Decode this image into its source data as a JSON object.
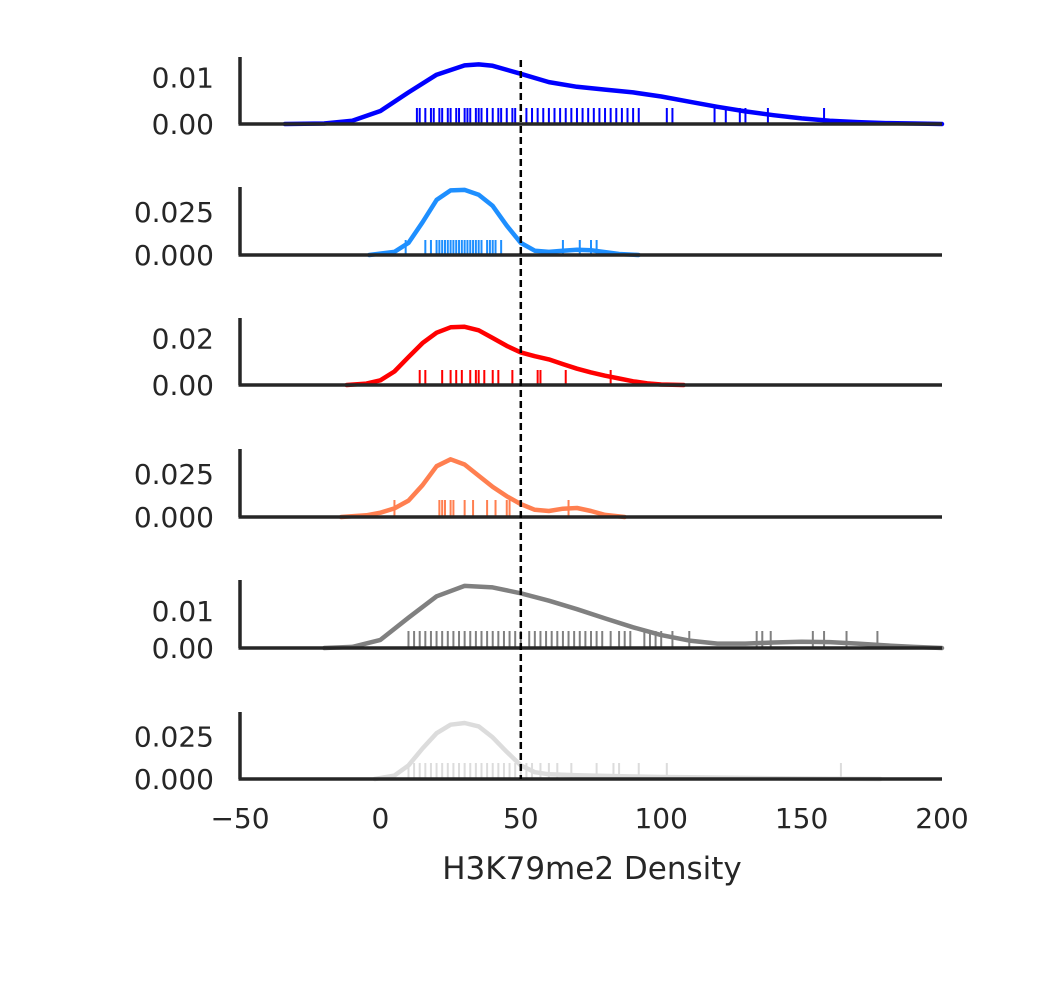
{
  "chart_data": {
    "type": "density-ridge",
    "title": "",
    "xlabel": "H3K79me2 Density",
    "xlim": [
      -50,
      200
    ],
    "xticks": [
      -50,
      0,
      50,
      100,
      150,
      200
    ],
    "xtick_labels": [
      "−50",
      "0",
      "50",
      "100",
      "150",
      "200"
    ],
    "reference_line": {
      "x": 50,
      "style": "dashed",
      "color": "#000000"
    },
    "grid": false,
    "legend": "none",
    "panels": [
      {
        "color": "#0000ff",
        "ylim": [
          0,
          0.0144
        ],
        "ytick_values": [
          0,
          0.01
        ],
        "ytick_labels": [
          "0.00",
          "0.01"
        ],
        "kde_x": [
          -34,
          -20,
          -10,
          0,
          10,
          20,
          30,
          35,
          40,
          50,
          60,
          70,
          80,
          90,
          100,
          110,
          120,
          130,
          140,
          150,
          160,
          170,
          180,
          190,
          200
        ],
        "kde_y": [
          0,
          0.0001,
          0.0007,
          0.0028,
          0.0068,
          0.0106,
          0.0126,
          0.0128,
          0.0125,
          0.0108,
          0.009,
          0.008,
          0.0074,
          0.0068,
          0.0059,
          0.0048,
          0.0037,
          0.0027,
          0.0019,
          0.0012,
          0.0007,
          0.0004,
          0.0002,
          0.0001,
          0
        ],
        "rug": [
          13,
          14,
          16,
          18,
          19,
          21,
          22,
          24,
          25,
          27,
          28,
          30,
          31,
          32,
          34,
          35,
          36,
          38,
          40,
          42,
          43,
          45,
          47,
          48,
          52,
          54,
          56,
          58,
          60,
          62,
          64,
          66,
          68,
          70,
          72,
          74,
          76,
          78,
          80,
          82,
          84,
          86,
          88,
          90,
          92,
          102,
          104,
          119,
          123,
          128,
          130,
          138,
          158
        ]
      },
      {
        "color": "#1e8fff",
        "ylim": [
          0,
          0.0395
        ],
        "ytick_values": [
          0,
          0.025
        ],
        "ytick_labels": [
          "0.000",
          "0.025"
        ],
        "kde_x": [
          -4,
          5,
          10,
          15,
          20,
          25,
          30,
          35,
          40,
          45,
          50,
          55,
          60,
          65,
          70,
          75,
          80,
          85,
          92
        ],
        "kde_y": [
          0,
          0.0018,
          0.007,
          0.019,
          0.032,
          0.0375,
          0.0378,
          0.035,
          0.0285,
          0.017,
          0.007,
          0.0025,
          0.0018,
          0.0025,
          0.003,
          0.0028,
          0.0017,
          0.0006,
          0
        ],
        "rug": [
          9,
          16,
          18,
          20,
          21,
          22,
          23,
          24,
          25,
          26,
          27,
          28,
          29,
          30,
          31,
          32,
          33,
          34,
          35,
          36,
          38,
          39,
          40,
          41,
          43,
          65,
          71,
          75,
          77
        ]
      },
      {
        "color": "#ff0000",
        "ylim": [
          0,
          0.0288
        ],
        "ytick_values": [
          0,
          0.02
        ],
        "ytick_labels": [
          "0.00",
          "0.02"
        ],
        "kde_x": [
          -12,
          -5,
          0,
          5,
          10,
          15,
          20,
          25,
          30,
          35,
          40,
          45,
          50,
          55,
          60,
          65,
          70,
          75,
          80,
          85,
          90,
          95,
          100,
          108
        ],
        "kde_y": [
          0,
          0.0006,
          0.002,
          0.0058,
          0.012,
          0.018,
          0.0225,
          0.0248,
          0.025,
          0.0235,
          0.0202,
          0.0168,
          0.014,
          0.0124,
          0.011,
          0.009,
          0.007,
          0.0054,
          0.004,
          0.0028,
          0.0016,
          0.0007,
          0.0002,
          0
        ],
        "rug": [
          14,
          16,
          22,
          25,
          27,
          29,
          32,
          34,
          35,
          37,
          40,
          42,
          47,
          56,
          57,
          66,
          82
        ]
      },
      {
        "color": "#ff7f50",
        "ylim": [
          0,
          0.0395
        ],
        "ytick_values": [
          0,
          0.025
        ],
        "ytick_labels": [
          "0.000",
          "0.025"
        ],
        "kde_x": [
          -14,
          -5,
          0,
          5,
          10,
          15,
          20,
          25,
          30,
          35,
          40,
          45,
          50,
          55,
          60,
          65,
          70,
          75,
          80,
          87
        ],
        "kde_y": [
          0,
          0.001,
          0.0025,
          0.005,
          0.0095,
          0.0185,
          0.0295,
          0.0335,
          0.0305,
          0.024,
          0.0175,
          0.012,
          0.0075,
          0.0042,
          0.0035,
          0.0048,
          0.0052,
          0.0035,
          0.0012,
          0
        ],
        "rug": [
          5,
          21,
          22,
          23,
          25,
          26,
          30,
          33,
          38,
          41,
          45,
          46,
          67
        ]
      },
      {
        "color": "#808080",
        "ylim": [
          0,
          0.0184
        ],
        "ytick_values": [
          0,
          0.01
        ],
        "ytick_labels": [
          "0.00",
          "0.01"
        ],
        "kde_x": [
          -20,
          -10,
          0,
          10,
          20,
          30,
          40,
          50,
          60,
          70,
          80,
          90,
          100,
          110,
          120,
          130,
          140,
          150,
          160,
          170,
          180,
          190,
          200
        ],
        "kde_y": [
          0,
          0.0003,
          0.0022,
          0.0082,
          0.014,
          0.0168,
          0.0164,
          0.0148,
          0.0128,
          0.0105,
          0.008,
          0.0056,
          0.0035,
          0.002,
          0.0012,
          0.0012,
          0.0015,
          0.0017,
          0.0016,
          0.0012,
          0.0007,
          0.0003,
          0
        ],
        "rug": [
          10,
          12,
          14,
          16,
          18,
          20,
          22,
          24,
          26,
          28,
          30,
          32,
          34,
          36,
          38,
          40,
          42,
          44,
          46,
          48,
          50,
          53,
          55,
          57,
          59,
          61,
          63,
          65,
          67,
          69,
          71,
          73,
          75,
          77,
          79,
          82,
          85,
          87,
          89,
          94,
          96,
          98,
          100,
          104,
          110,
          134,
          136,
          139,
          154,
          158,
          166,
          177
        ]
      },
      {
        "color": "#dcdcdc",
        "ylim": [
          0,
          0.0395
        ],
        "ytick_values": [
          0,
          0.025
        ],
        "ytick_labels": [
          "0.000",
          "0.025"
        ],
        "kde_x": [
          -2,
          5,
          10,
          15,
          20,
          25,
          30,
          35,
          40,
          45,
          50,
          55,
          60,
          70,
          80,
          90,
          100,
          110,
          120,
          140,
          160,
          178
        ],
        "kde_y": [
          0,
          0.002,
          0.008,
          0.018,
          0.027,
          0.032,
          0.033,
          0.031,
          0.0245,
          0.016,
          0.008,
          0.004,
          0.0028,
          0.0022,
          0.0018,
          0.0015,
          0.0012,
          0.001,
          0.0008,
          0.0005,
          0.0002,
          0
        ],
        "rug": [
          10,
          12,
          14,
          16,
          18,
          20,
          22,
          24,
          26,
          28,
          30,
          32,
          34,
          36,
          38,
          40,
          42,
          44,
          46,
          48,
          50,
          52,
          54,
          57,
          60,
          63,
          68,
          77,
          83,
          85,
          92,
          102,
          164
        ]
      }
    ]
  }
}
